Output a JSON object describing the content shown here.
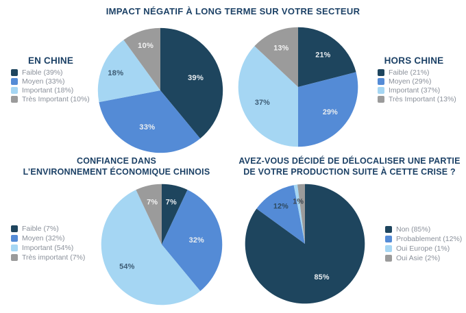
{
  "main_title": "IMPACT NÉGATIF À LONG TERME SUR VOTRE SECTEUR",
  "colors": {
    "navy": "#1E455E",
    "blue": "#548BD6",
    "light_blue": "#A5D6F3",
    "gray": "#9B9B9B",
    "title_text": "#1C4166",
    "legend_text": "#8A909A"
  },
  "chart_data": [
    {
      "type": "pie",
      "name": "impact-en-chine",
      "legend_title": "EN CHINE",
      "legend_position": "left",
      "slices": [
        {
          "category": "Faible",
          "value": 39,
          "label": "39%",
          "legend": "Faible (39%)",
          "color": "#1E455E",
          "label_color": "#E9EDF0",
          "label_r": 0.6
        },
        {
          "category": "Moyen",
          "value": 33,
          "label": "33%",
          "legend": "Moyen (33%)",
          "color": "#548BD6",
          "label_color": "#E9EDF0",
          "label_r": 0.62
        },
        {
          "category": "Important",
          "value": 18,
          "label": "18%",
          "legend": "Important (18%)",
          "color": "#A5D6F3",
          "label_color": "#3D5B73",
          "label_r": 0.77
        },
        {
          "category": "Très Important",
          "value": 10,
          "label": "10%",
          "legend": "Très Important (10%)",
          "color": "#9B9B9B",
          "label_color": "#F2F2F2",
          "label_r": 0.76
        }
      ]
    },
    {
      "type": "pie",
      "name": "impact-hors-chine",
      "legend_title": "HORS CHINE",
      "legend_position": "right",
      "slices": [
        {
          "category": "Faible",
          "value": 21,
          "label": "21%",
          "legend": "Faible (21%)",
          "color": "#1E455E",
          "label_color": "#E9EDF0",
          "label_r": 0.68
        },
        {
          "category": "Moyen",
          "value": 29,
          "label": "29%",
          "legend": "Moyen (29%)",
          "color": "#548BD6",
          "label_color": "#E9EDF0",
          "label_r": 0.68
        },
        {
          "category": "Important",
          "value": 37,
          "label": "37%",
          "legend": "Important (37%)",
          "color": "#A5D6F3",
          "label_color": "#3D5B73",
          "label_r": 0.65
        },
        {
          "category": "Très Important",
          "value": 13,
          "label": "13%",
          "legend": "Très Important (13%)",
          "color": "#9B9B9B",
          "label_color": "#F2F2F2",
          "label_r": 0.71
        }
      ]
    },
    {
      "type": "pie",
      "name": "confiance-environnement-chinois",
      "title_line1": "CONFIANCE DANS",
      "title_line2": "L’ENVIRONNEMENT ÉCONOMIQUE CHINOIS",
      "legend_position": "left",
      "slices": [
        {
          "category": "Faible",
          "value": 7,
          "label": "7%",
          "legend": "Faible (7%)",
          "color": "#1E455E",
          "label_color": "#E9EDF0",
          "label_r": 0.72
        },
        {
          "category": "Moyen",
          "value": 32,
          "label": "32%",
          "legend": "Moyen (32%)",
          "color": "#548BD6",
          "label_color": "#E9EDF0",
          "label_r": 0.58
        },
        {
          "category": "Important",
          "value": 54,
          "label": "54%",
          "legend": "Important (54%)",
          "color": "#A5D6F3",
          "label_color": "#3D5B73",
          "label_r": 0.68
        },
        {
          "category": "Très important",
          "value": 7,
          "label": "7%",
          "legend": "Très important (7%)",
          "color": "#9B9B9B",
          "label_color": "#F2F2F2",
          "label_r": 0.72
        }
      ]
    },
    {
      "type": "pie",
      "name": "delocalisation-production",
      "title_line1": "AVEZ-VOUS DÉCIDÉ DE DÉLOCALISER UNE PARTIE",
      "title_line2": "DE VOTRE PRODUCTION SUITE À CETTE CRISE ?",
      "legend_position": "right",
      "slices": [
        {
          "category": "Non",
          "value": 85,
          "label": "85%",
          "legend": "Non (85%)",
          "color": "#1E455E",
          "label_color": "#E9EDF0",
          "label_r": 0.62
        },
        {
          "category": "Probablement",
          "value": 12,
          "label": "12%",
          "legend": "Probablement (12%)",
          "color": "#548BD6",
          "label_color": "#2E4A60",
          "label_r": 0.75
        },
        {
          "category": "Oui Europe",
          "value": 1,
          "label": "1%",
          "legend": "Oui Europe (1%)",
          "color": "#A5D6F3",
          "label_color": "#3C4650",
          "label_r": 0.72
        },
        {
          "category": "Oui Asie",
          "value": 2,
          "label": "",
          "legend": "Oui Asie (2%)",
          "color": "#9B9B9B",
          "label_color": "",
          "label_r": 0
        }
      ]
    }
  ]
}
